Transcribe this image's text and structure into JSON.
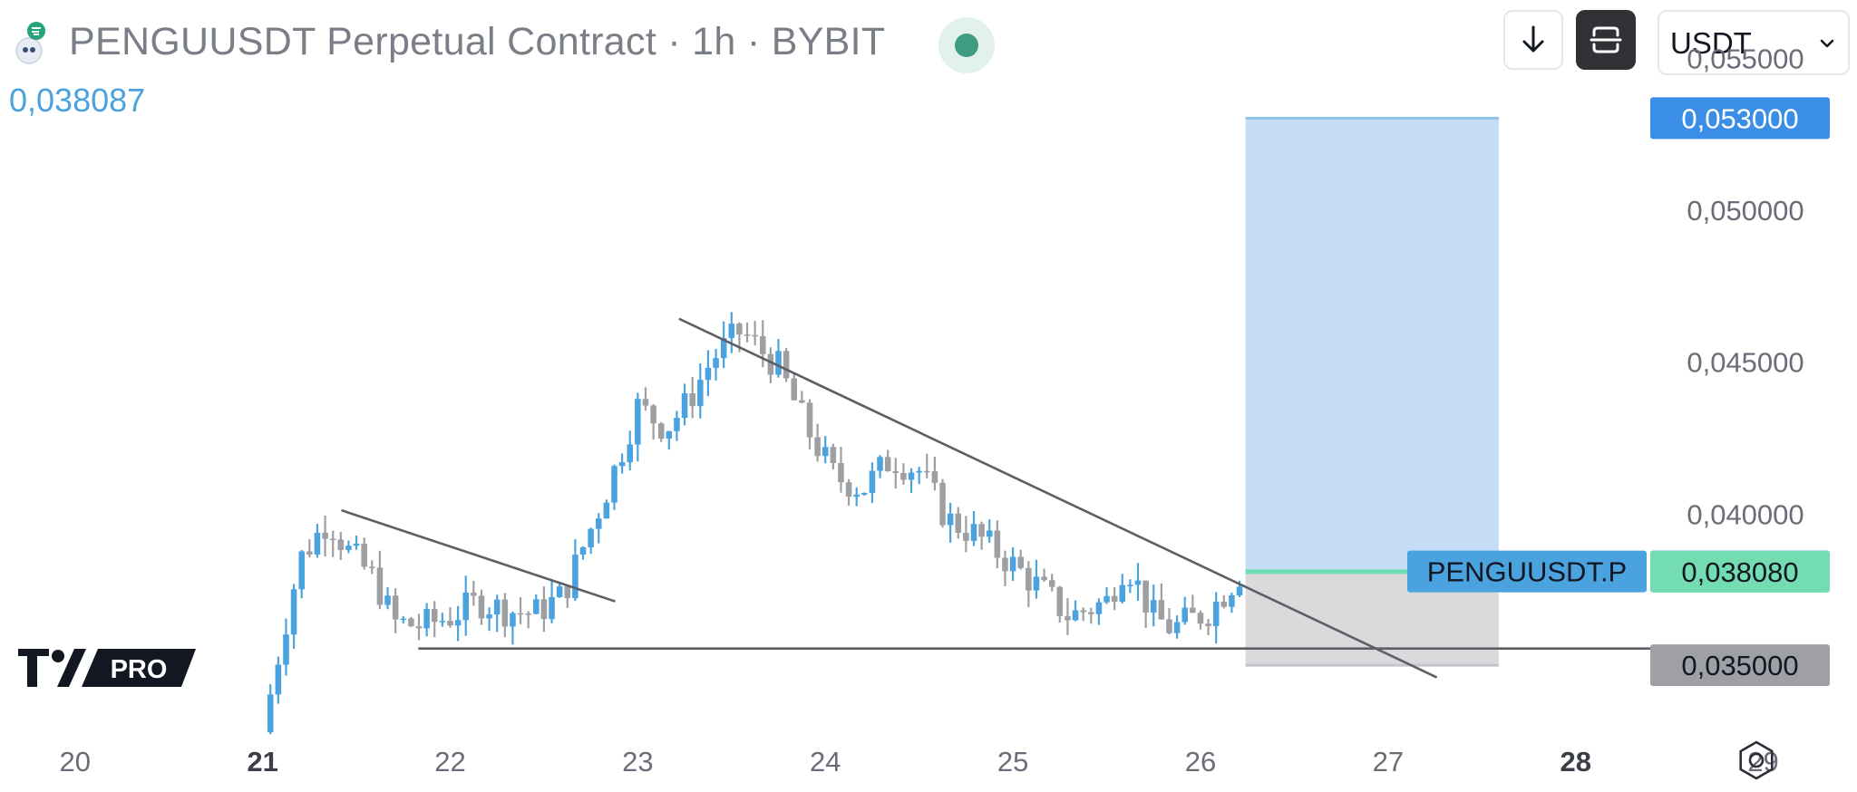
{
  "header": {
    "title": "PENGUUSDT Perpetual Contract · 1h · BYBIT",
    "last_price": "0,038087",
    "currency": "USDT",
    "icons": [
      "logo-icon",
      "download-arrow-icon",
      "screenshot-icon",
      "chevron-down-icon",
      "live-status-icon",
      "settings-icon"
    ]
  },
  "branding": {
    "pro_label": "PRO"
  },
  "colors": {
    "up": "#4aa3df",
    "down": "#9e9fa3",
    "target_zone": "#c4ddf4",
    "stop_zone": "#dadadd",
    "entry_line": "#6fdcb5",
    "trendline": "#5d5f64",
    "target_badge": "#3a8ee6",
    "ticker_badge": "#4aa3df",
    "entry_badge": "#74dcb2",
    "stop_badge": "#9ea0a5"
  },
  "chart_data": {
    "type": "candlestick",
    "symbol": "PENGUUSDT.P",
    "interval": "1h",
    "exchange": "BYBIT",
    "x_axis": {
      "ticks": [
        {
          "label": "20",
          "bold": false
        },
        {
          "label": "21",
          "bold": true
        },
        {
          "label": "22",
          "bold": false
        },
        {
          "label": "23",
          "bold": false
        },
        {
          "label": "24",
          "bold": false
        },
        {
          "label": "25",
          "bold": false
        },
        {
          "label": "26",
          "bold": false
        },
        {
          "label": "27",
          "bold": false
        },
        {
          "label": "28",
          "bold": true
        },
        {
          "label": "29",
          "bold": false
        }
      ],
      "range_days": [
        19.6,
        29.5
      ]
    },
    "y_axis": {
      "range": [
        0.0325,
        0.0548
      ],
      "ticks": [
        "0,055000",
        "0,050000",
        "0,045000",
        "0,040000"
      ],
      "tick_values": [
        0.055,
        0.05,
        0.045,
        0.04
      ]
    },
    "price_labels": [
      {
        "name": "target",
        "value": 0.053,
        "text": "0,053000"
      },
      {
        "name": "last",
        "value": 0.038087,
        "text": "0,038087",
        "ticker": "PENGUUSDT.P"
      },
      {
        "name": "entry",
        "value": 0.03808,
        "text": "0,038080"
      },
      {
        "name": "stop",
        "value": 0.035,
        "text": "0,035000"
      }
    ],
    "candle_path": [
      [
        21.0,
        0.0328
      ],
      [
        21.1,
        0.0358
      ],
      [
        21.2,
        0.0385
      ],
      [
        21.35,
        0.0398
      ],
      [
        21.45,
        0.0388
      ],
      [
        21.6,
        0.0378
      ],
      [
        21.7,
        0.0364
      ],
      [
        21.85,
        0.0363
      ],
      [
        22.0,
        0.0366
      ],
      [
        22.15,
        0.0371
      ],
      [
        22.3,
        0.0368
      ],
      [
        22.45,
        0.0367
      ],
      [
        22.6,
        0.0373
      ],
      [
        22.75,
        0.0395
      ],
      [
        22.85,
        0.041
      ],
      [
        23.0,
        0.0435
      ],
      [
        23.15,
        0.0428
      ],
      [
        23.25,
        0.0435
      ],
      [
        23.4,
        0.0451
      ],
      [
        23.55,
        0.046
      ],
      [
        23.75,
        0.0448
      ],
      [
        23.9,
        0.0428
      ],
      [
        24.05,
        0.0412
      ],
      [
        24.2,
        0.0408
      ],
      [
        24.35,
        0.0418
      ],
      [
        24.5,
        0.0414
      ],
      [
        24.65,
        0.0398
      ],
      [
        24.8,
        0.0393
      ],
      [
        25.0,
        0.0383
      ],
      [
        25.15,
        0.0375
      ],
      [
        25.3,
        0.0366
      ],
      [
        25.5,
        0.0371
      ],
      [
        25.6,
        0.0384
      ],
      [
        25.75,
        0.0366
      ],
      [
        25.85,
        0.0362
      ],
      [
        26.05,
        0.0368
      ],
      [
        26.22,
        0.0381
      ]
    ],
    "long_position": {
      "entry": 0.03808,
      "target": 0.053,
      "stop": 0.035,
      "start_day": 26.24,
      "end_day": 27.59
    },
    "lines": [
      {
        "name": "trendline-left",
        "from": [
          21.42,
          0.0401
        ],
        "to": [
          22.88,
          0.0371
        ]
      },
      {
        "name": "trendline-main",
        "from": [
          23.22,
          0.0464
        ],
        "to": [
          27.26,
          0.0346
        ]
      },
      {
        "name": "support-line",
        "from": [
          21.83,
          0.03555
        ],
        "to": [
          28.56,
          0.03555
        ]
      }
    ]
  }
}
